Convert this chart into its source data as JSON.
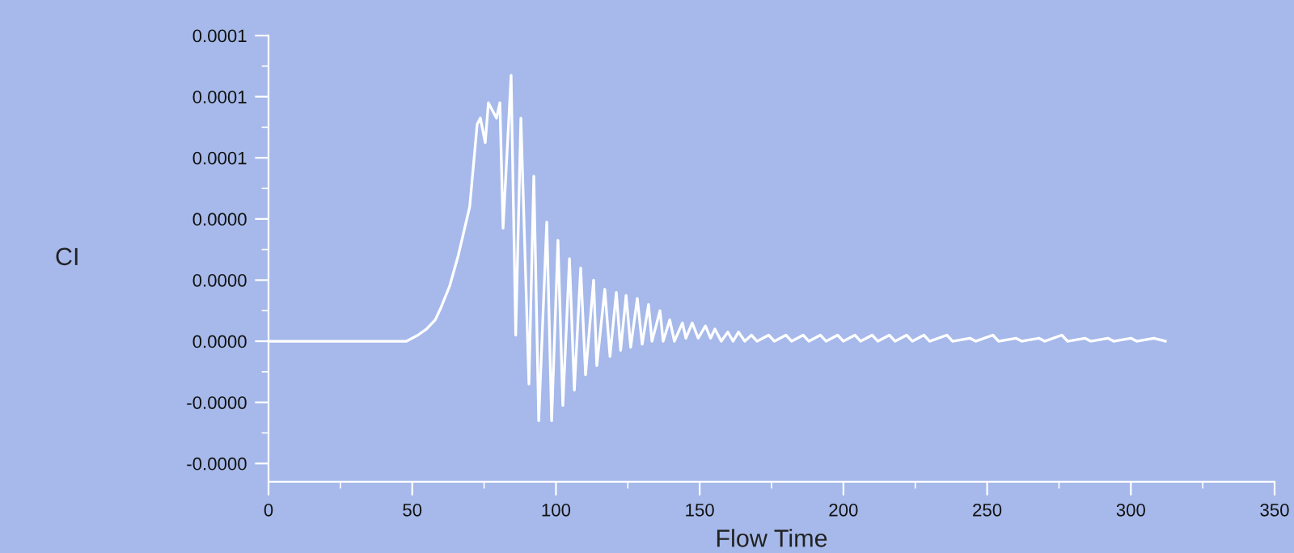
{
  "chart_data": {
    "type": "line",
    "xlabel": "Flow Time",
    "ylabel": "CI",
    "xlim": [
      0,
      350
    ],
    "xticks": [
      0,
      50,
      100,
      150,
      200,
      250,
      300,
      350
    ],
    "ylim": [
      -4.6e-05,
      0.0001
    ],
    "yticks": [
      {
        "value": -4e-05,
        "label": "-0.0000"
      },
      {
        "value": -2e-05,
        "label": "-0.0000"
      },
      {
        "value": 0,
        "label": "0.0000"
      },
      {
        "value": 2e-05,
        "label": "0.0000"
      },
      {
        "value": 4e-05,
        "label": "0.0000"
      },
      {
        "value": 6e-05,
        "label": "0.0001"
      },
      {
        "value": 8e-05,
        "label": "0.0001"
      },
      {
        "value": 0.0001,
        "label": "0.0001"
      }
    ],
    "grid": false,
    "legend": false,
    "marker": "none",
    "line_style": "solid",
    "series": [
      {
        "color": "#ffffff",
        "x": [
          0,
          20,
          40,
          48,
          52,
          55,
          58,
          60,
          63,
          66,
          68,
          70,
          72.6,
          73.7,
          75.4,
          76.5,
          79.3,
          80.5,
          81.6,
          84.4,
          86,
          87.8,
          90.6,
          92.3,
          94,
          96.8,
          98.5,
          100.7,
          102.4,
          104.7,
          106.4,
          108.6,
          110.3,
          113.1,
          114.2,
          117,
          118.8,
          121,
          122.5,
          124.4,
          126,
          128.3,
          130,
          132.2,
          133.4,
          136.2,
          137.3,
          139.6,
          141.2,
          144,
          145.2,
          147.4,
          149.5,
          152,
          153.8,
          155.3,
          157.5,
          159.8,
          161.6,
          163.5,
          165.7,
          168,
          170,
          174,
          176,
          180,
          182,
          186,
          188,
          192,
          194,
          198,
          200,
          204,
          206,
          210,
          212,
          216,
          218,
          222,
          224,
          228,
          230,
          236,
          238,
          244,
          246,
          252,
          254,
          260,
          262,
          268,
          270,
          276,
          278,
          284,
          286,
          292,
          294,
          300,
          302,
          308,
          312
        ],
        "values": [
          0,
          0,
          0,
          0,
          2e-06,
          4e-06,
          7e-06,
          1.1e-05,
          1.8e-05,
          2.8e-05,
          3.6e-05,
          4.4e-05,
          7.1e-05,
          7.3e-05,
          6.5e-05,
          7.8e-05,
          7.3e-05,
          7.8e-05,
          3.7e-05,
          8.7e-05,
          2e-06,
          7.3e-05,
          -1.4e-05,
          5.4e-05,
          -2.6e-05,
          3.9e-05,
          -2.6e-05,
          3.3e-05,
          -2.1e-05,
          2.7e-05,
          -1.6e-05,
          2.4e-05,
          -1.1e-05,
          2e-05,
          -8e-06,
          1.7e-05,
          -5e-06,
          1.6e-05,
          -3e-06,
          1.5e-05,
          -2e-06,
          1.4e-05,
          -1e-06,
          1.2e-05,
          0,
          1e-05,
          0,
          7e-06,
          0,
          6e-06,
          1e-06,
          6e-06,
          1e-06,
          5e-06,
          1e-06,
          4e-06,
          0,
          3e-06,
          0,
          3e-06,
          0,
          2e-06,
          0,
          2e-06,
          0,
          2e-06,
          0,
          2e-06,
          0,
          2e-06,
          0,
          2e-06,
          0,
          2e-06,
          0,
          2e-06,
          0,
          2e-06,
          0,
          2e-06,
          0,
          2e-06,
          0,
          2e-06,
          0,
          1e-06,
          0,
          2e-06,
          0,
          1e-06,
          0,
          1e-06,
          0,
          2e-06,
          0,
          1e-06,
          0,
          1e-06,
          0,
          1e-06,
          0,
          1e-06,
          0
        ]
      }
    ]
  }
}
